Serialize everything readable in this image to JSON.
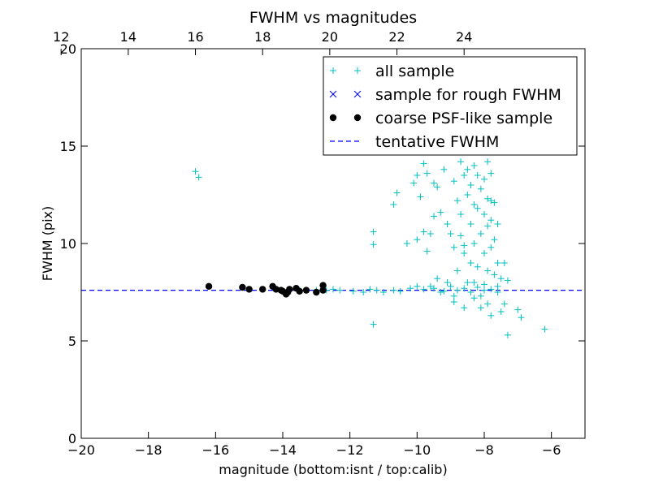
{
  "chart_data": {
    "type": "scatter",
    "title": "FWHM vs magnitudes",
    "xlabel": "magnitude (bottom:isnt / top:calib)",
    "ylabel": "FWHM (pix)",
    "xlim": [
      -20,
      -5
    ],
    "ylim": [
      0,
      20
    ],
    "x_ticks": [
      -20,
      -18,
      -16,
      -14,
      -12,
      -10,
      -8,
      -6
    ],
    "x_tick_labels": [
      "−20",
      "−18",
      "−16",
      "−14",
      "−12",
      "−10",
      "−8",
      "−6"
    ],
    "y_ticks": [
      0,
      5,
      10,
      15,
      20
    ],
    "y_tick_labels": [
      "0",
      "5",
      "10",
      "15",
      "20"
    ],
    "top_axis": {
      "offset": 32.6,
      "ticks": [
        12,
        14,
        16,
        18,
        20,
        22,
        24
      ],
      "tick_labels": [
        "12",
        "14",
        "16",
        "18",
        "20",
        "22",
        "24"
      ]
    },
    "grid": false,
    "legend_position": "top-right",
    "series": [
      {
        "name": "all sample",
        "marker": "plus",
        "color": "#00bfbf",
        "points": [
          [
            -16.6,
            13.7
          ],
          [
            -16.5,
            13.4
          ],
          [
            -13.5,
            7.6
          ],
          [
            -13.0,
            7.6
          ],
          [
            -12.7,
            7.6
          ],
          [
            -12.5,
            7.65
          ],
          [
            -12.3,
            7.6
          ],
          [
            -11.9,
            7.55
          ],
          [
            -11.6,
            7.5
          ],
          [
            -11.4,
            7.65
          ],
          [
            -11.2,
            7.6
          ],
          [
            -11.0,
            7.5
          ],
          [
            -10.7,
            7.6
          ],
          [
            -10.5,
            7.55
          ],
          [
            -10.2,
            7.7
          ],
          [
            -10.0,
            7.8
          ],
          [
            -9.8,
            7.65
          ],
          [
            -9.5,
            7.7
          ],
          [
            -9.2,
            7.55
          ],
          [
            -9.0,
            7.8
          ],
          [
            -8.8,
            7.6
          ],
          [
            -8.6,
            7.7
          ],
          [
            -8.4,
            7.5
          ],
          [
            -8.2,
            7.75
          ],
          [
            -8.0,
            7.6
          ],
          [
            -7.8,
            7.65
          ],
          [
            -7.6,
            7.5
          ],
          [
            -11.3,
            5.85
          ],
          [
            -11.3,
            9.95
          ],
          [
            -11.3,
            10.6
          ],
          [
            -10.7,
            12.0
          ],
          [
            -10.6,
            12.6
          ],
          [
            -10.3,
            10.0
          ],
          [
            -10.1,
            13.1
          ],
          [
            -10.0,
            10.2
          ],
          [
            -10.0,
            13.5
          ],
          [
            -9.9,
            12.4
          ],
          [
            -9.8,
            14.1
          ],
          [
            -9.8,
            10.6
          ],
          [
            -9.7,
            9.6
          ],
          [
            -9.7,
            13.6
          ],
          [
            -9.6,
            10.5
          ],
          [
            -9.6,
            7.8
          ],
          [
            -9.5,
            11.4
          ],
          [
            -9.4,
            8.2
          ],
          [
            -9.4,
            12.9
          ],
          [
            -9.3,
            11.6
          ],
          [
            -9.3,
            7.5
          ],
          [
            -9.2,
            13.8
          ],
          [
            -9.1,
            11.0
          ],
          [
            -9.1,
            8.0
          ],
          [
            -9.0,
            10.5
          ],
          [
            -8.9,
            13.2
          ],
          [
            -8.9,
            9.8
          ],
          [
            -8.9,
            7.3
          ],
          [
            -8.8,
            12.2
          ],
          [
            -8.8,
            8.6
          ],
          [
            -8.7,
            14.2
          ],
          [
            -8.7,
            11.5
          ],
          [
            -8.7,
            10.4
          ],
          [
            -8.6,
            13.5
          ],
          [
            -8.6,
            9.5
          ],
          [
            -8.6,
            6.7
          ],
          [
            -8.5,
            13.8
          ],
          [
            -8.5,
            12.5
          ],
          [
            -8.5,
            8.0
          ],
          [
            -8.4,
            14.7
          ],
          [
            -8.4,
            13.0
          ],
          [
            -8.4,
            11.0
          ],
          [
            -8.4,
            9.0
          ],
          [
            -8.3,
            14.0
          ],
          [
            -8.3,
            12.0
          ],
          [
            -8.3,
            10.0
          ],
          [
            -8.3,
            7.2
          ],
          [
            -8.2,
            13.5
          ],
          [
            -8.2,
            11.8
          ],
          [
            -8.2,
            8.8
          ],
          [
            -8.1,
            14.9
          ],
          [
            -8.1,
            12.8
          ],
          [
            -8.1,
            10.5
          ],
          [
            -8.1,
            6.7
          ],
          [
            -8.0,
            13.3
          ],
          [
            -8.0,
            11.5
          ],
          [
            -8.0,
            9.5
          ],
          [
            -8.0,
            7.9
          ],
          [
            -7.9,
            14.2
          ],
          [
            -7.9,
            12.3
          ],
          [
            -7.9,
            10.9
          ],
          [
            -7.9,
            8.6
          ],
          [
            -7.8,
            13.6
          ],
          [
            -7.8,
            12.2
          ],
          [
            -7.8,
            11.2
          ],
          [
            -7.8,
            9.8
          ],
          [
            -7.8,
            6.3
          ],
          [
            -7.7,
            12.1
          ],
          [
            -7.7,
            10.2
          ],
          [
            -7.7,
            8.4
          ],
          [
            -7.6,
            11.0
          ],
          [
            -7.6,
            9.0
          ],
          [
            -7.6,
            7.8
          ],
          [
            -7.5,
            8.2
          ],
          [
            -7.5,
            6.5
          ],
          [
            -7.4,
            9.0
          ],
          [
            -7.4,
            6.9
          ],
          [
            -7.3,
            5.3
          ],
          [
            -7.3,
            8.1
          ],
          [
            -7.0,
            6.6
          ],
          [
            -6.9,
            6.2
          ],
          [
            -6.2,
            5.6
          ],
          [
            -9.5,
            13.1
          ],
          [
            -8.3,
            8.0
          ],
          [
            -8.6,
            9.9
          ],
          [
            -8.9,
            7.0
          ],
          [
            -8.1,
            7.3
          ],
          [
            -7.9,
            6.9
          ]
        ]
      },
      {
        "name": "sample for rough FWHM",
        "marker": "x",
        "color": "#0000ff",
        "points": []
      },
      {
        "name": "coarse PSF-like sample",
        "marker": "circle",
        "color": "#000000",
        "points": [
          [
            -16.2,
            7.8
          ],
          [
            -15.2,
            7.75
          ],
          [
            -15.0,
            7.65
          ],
          [
            -14.6,
            7.65
          ],
          [
            -14.3,
            7.8
          ],
          [
            -14.2,
            7.65
          ],
          [
            -14.0,
            7.55
          ],
          [
            -13.9,
            7.4
          ],
          [
            -13.8,
            7.65
          ],
          [
            -13.6,
            7.7
          ],
          [
            -13.5,
            7.55
          ],
          [
            -13.3,
            7.6
          ],
          [
            -13.0,
            7.5
          ],
          [
            -12.8,
            7.85
          ],
          [
            -12.8,
            7.6
          ],
          [
            -14.05,
            7.6
          ],
          [
            -13.85,
            7.5
          ]
        ]
      },
      {
        "name": "tentative FWHM",
        "marker": "dashed-line",
        "color": "#0000ff",
        "hline": 7.6
      }
    ]
  }
}
